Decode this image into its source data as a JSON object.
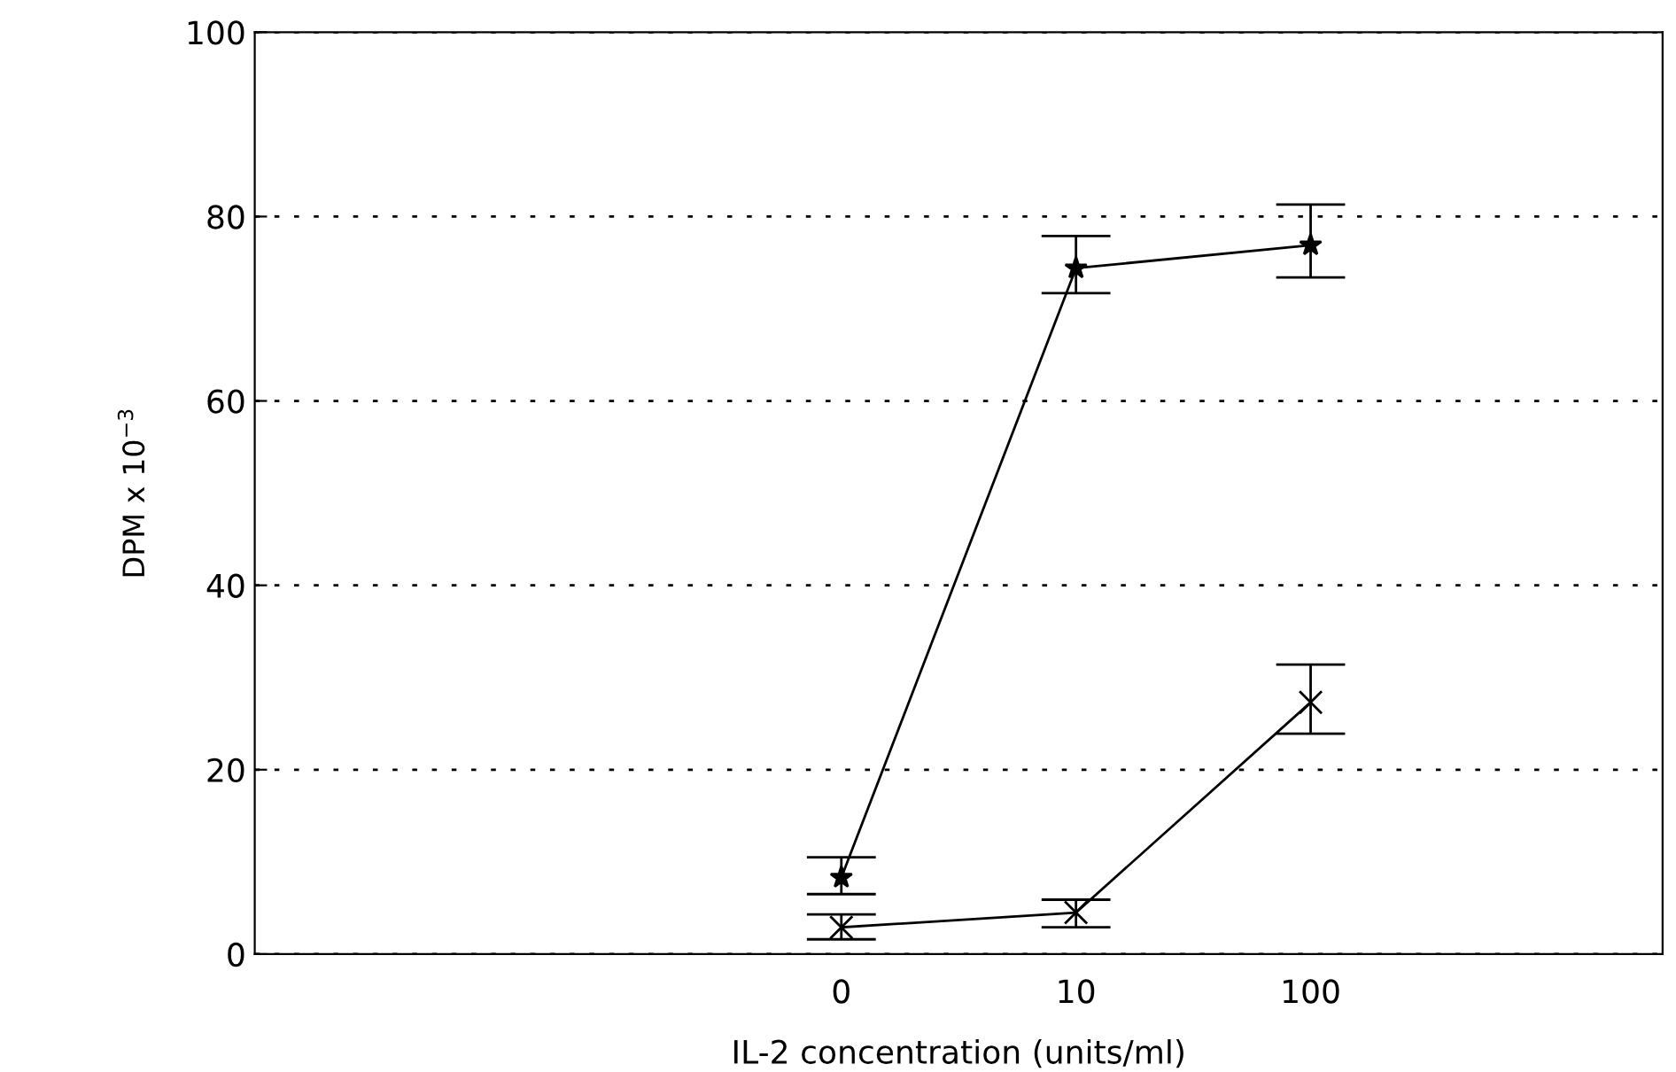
{
  "chart_data": {
    "type": "line",
    "xlabel": "IL-2 concentration (units/ml)",
    "ylabel": "DPM x 10$^{−3}$",
    "categories": [
      null,
      null,
      "0",
      "10",
      "100",
      null
    ],
    "series": [
      {
        "color": "#000000",
        "marker": "star",
        "values": [
          null,
          null,
          8.3,
          74.4,
          76.9,
          null
        ],
        "errors": [
          null,
          null,
          [
            6.5,
            10.5
          ],
          [
            71.7,
            77.9
          ],
          [
            73.4,
            81.3
          ],
          null
        ]
      },
      {
        "color": "#000000",
        "marker": "cross",
        "values": [
          null,
          null,
          2.9,
          4.5,
          27.3,
          null
        ],
        "errors": [
          null,
          null,
          [
            1.6,
            4.3
          ],
          [
            2.9,
            5.9
          ],
          [
            23.9,
            31.4
          ],
          null
        ]
      }
    ],
    "ylim": [
      0,
      100
    ],
    "yticks": [
      0,
      20,
      40,
      60,
      80,
      100
    ],
    "grid": "y",
    "line_style": "solid",
    "legend": false
  }
}
